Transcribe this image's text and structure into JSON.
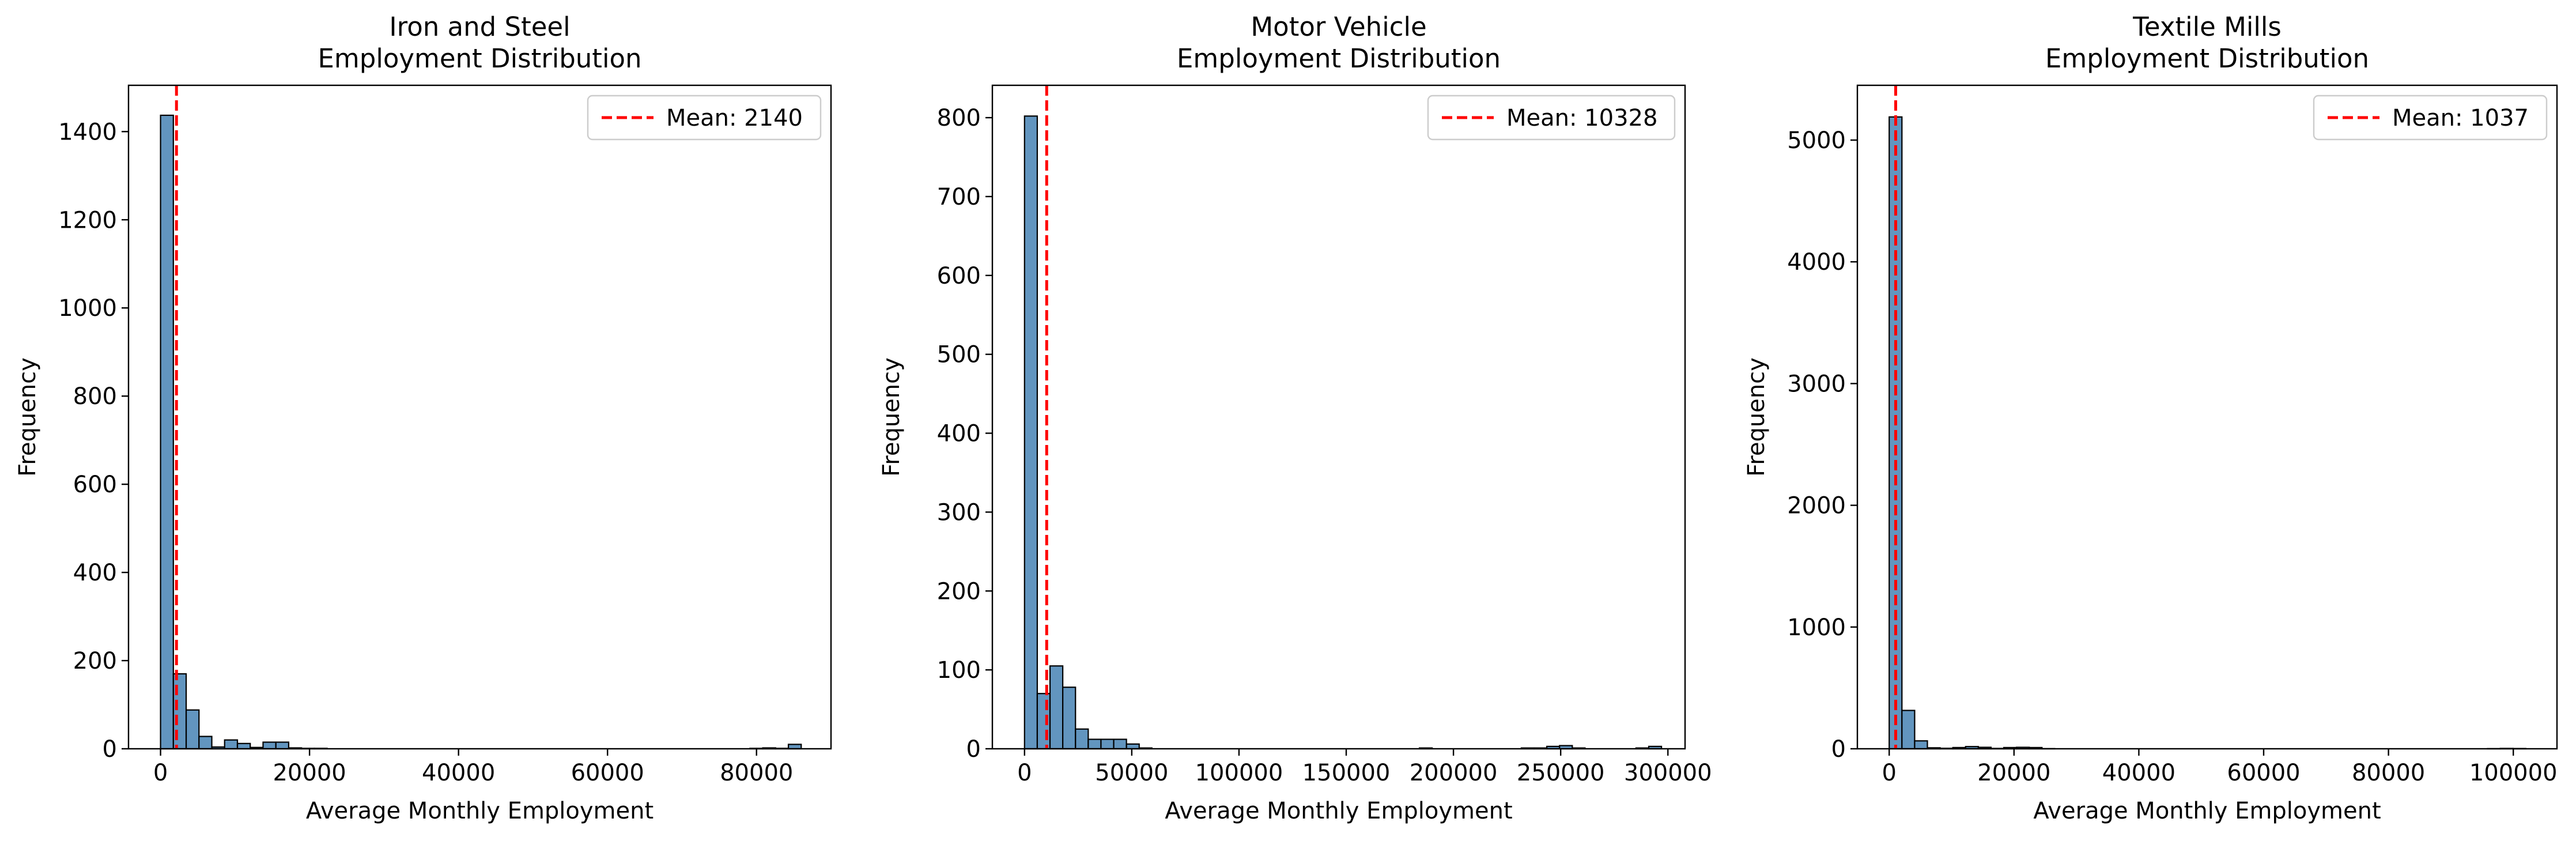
{
  "figure": {
    "panel_count": 3
  },
  "colors": {
    "bar_fill": "#4682b4",
    "bar_fill_opacity": 0.85,
    "bar_edge": "#000000",
    "mean_line": "#ff0000",
    "axis": "#000000"
  },
  "chart_data": [
    {
      "type": "bar",
      "title": "Iron and Steel\nEmployment Distribution",
      "xlabel": "Average Monthly Employment",
      "ylabel": "Frequency",
      "xlim": [
        -4300,
        90000
      ],
      "ylim": [
        0,
        1505
      ],
      "xticks": [
        0,
        20000,
        40000,
        60000,
        80000
      ],
      "xtick_labels": [
        "0",
        "20000",
        "40000",
        "60000",
        "80000"
      ],
      "yticks": [
        0,
        200,
        400,
        600,
        800,
        1000,
        1200,
        1400
      ],
      "ytick_labels": [
        "0",
        "200",
        "400",
        "600",
        "800",
        "1000",
        "1200",
        "1400"
      ],
      "bin_edges": [
        0,
        1720,
        3440,
        5160,
        6880,
        8600,
        10320,
        12040,
        13760,
        15480,
        17200,
        18920,
        20640,
        22360,
        24080,
        25800,
        27520,
        29240,
        30960,
        32680,
        34400,
        36120,
        37840,
        39560,
        41280,
        43000,
        44720,
        46440,
        48160,
        49880,
        51600,
        53320,
        55040,
        56760,
        58480,
        60200,
        61920,
        63640,
        65360,
        67080,
        68800,
        70520,
        72240,
        73960,
        75680,
        77400,
        79120,
        80840,
        82560,
        84280,
        86000
      ],
      "counts": [
        1437,
        170,
        88,
        28,
        4,
        20,
        12,
        3,
        15,
        15,
        2,
        1,
        1,
        0,
        0,
        0,
        0,
        0,
        0,
        0,
        0,
        0,
        0,
        0,
        0,
        0,
        0,
        0,
        0,
        0,
        0,
        0,
        0,
        0,
        0,
        0,
        0,
        0,
        0,
        0,
        0,
        0,
        0,
        0,
        0,
        0,
        1,
        2,
        1,
        10
      ],
      "mean": 2140,
      "legend_label": "Mean: 2140",
      "legend_position": "upper right",
      "grid": false
    },
    {
      "type": "bar",
      "title": "Motor Vehicle\nEmployment Distribution",
      "xlabel": "Average Monthly Employment",
      "ylabel": "Frequency",
      "xlim": [
        -15000,
        308000
      ],
      "ylim": [
        0,
        841
      ],
      "xticks": [
        0,
        50000,
        100000,
        150000,
        200000,
        250000,
        300000
      ],
      "xtick_labels": [
        "0",
        "50000",
        "100000",
        "150000",
        "200000",
        "250000",
        "300000"
      ],
      "yticks": [
        0,
        100,
        200,
        300,
        400,
        500,
        600,
        700,
        800
      ],
      "ytick_labels": [
        "0",
        "100",
        "200",
        "300",
        "400",
        "500",
        "600",
        "700",
        "800"
      ],
      "bin_edges": [
        0,
        5940,
        11880,
        17820,
        23760,
        29700,
        35640,
        41580,
        47520,
        53460,
        59400,
        65340,
        71280,
        77220,
        83160,
        89100,
        95040,
        100980,
        106920,
        112860,
        118800,
        124740,
        130680,
        136620,
        142560,
        148500,
        154440,
        160380,
        166320,
        172260,
        178200,
        184140,
        190080,
        196020,
        201960,
        207900,
        213840,
        219780,
        225720,
        231660,
        237600,
        243540,
        249480,
        255420,
        261360,
        267300,
        273240,
        279180,
        285120,
        291060,
        297000
      ],
      "counts": [
        802,
        70,
        105,
        78,
        25,
        12,
        12,
        12,
        6,
        1,
        0,
        0,
        0,
        0,
        0,
        0,
        0,
        0,
        0,
        0,
        0,
        0,
        0,
        0,
        0,
        0,
        0,
        0,
        0,
        0,
        0,
        1,
        0,
        0,
        0,
        0,
        0,
        0,
        0,
        1,
        1,
        3,
        4,
        1,
        0,
        0,
        0,
        0,
        1,
        3
      ],
      "mean": 10328,
      "legend_label": "Mean: 10328",
      "legend_position": "upper right",
      "grid": false
    },
    {
      "type": "bar",
      "title": "Textile Mills\nEmployment Distribution",
      "xlabel": "Average Monthly Employment",
      "ylabel": "Frequency",
      "xlim": [
        -5100,
        107000
      ],
      "ylim": [
        0,
        5450
      ],
      "xticks": [
        0,
        20000,
        40000,
        60000,
        80000,
        100000
      ],
      "xtick_labels": [
        "0",
        "20000",
        "40000",
        "60000",
        "80000",
        "100000"
      ],
      "yticks": [
        0,
        1000,
        2000,
        3000,
        4000,
        5000
      ],
      "ytick_labels": [
        "0",
        "1000",
        "2000",
        "3000",
        "4000",
        "5000"
      ],
      "bin_edges": [
        0,
        2040,
        4080,
        6120,
        8160,
        10200,
        12240,
        14280,
        16320,
        18360,
        20400,
        22440,
        24480,
        26520,
        28560,
        30600,
        32640,
        34680,
        36720,
        38760,
        40800,
        42840,
        44880,
        46920,
        48960,
        51000,
        53040,
        55080,
        57120,
        59160,
        61200,
        63240,
        65280,
        67320,
        69360,
        71400,
        73440,
        75480,
        77520,
        79560,
        81600,
        83640,
        85680,
        87720,
        89760,
        91800,
        93840,
        95880,
        97920,
        99960,
        102000
      ],
      "counts": [
        5190,
        315,
        65,
        8,
        4,
        10,
        18,
        12,
        3,
        10,
        12,
        10,
        1,
        0,
        0,
        0,
        0,
        0,
        0,
        0,
        0,
        0,
        0,
        0,
        0,
        0,
        0,
        0,
        0,
        0,
        0,
        0,
        0,
        0,
        0,
        0,
        0,
        0,
        0,
        0,
        0,
        0,
        0,
        0,
        0,
        0,
        0,
        1,
        3,
        2
      ],
      "mean": 1037,
      "legend_label": "Mean: 1037",
      "legend_position": "upper right",
      "grid": false
    }
  ]
}
